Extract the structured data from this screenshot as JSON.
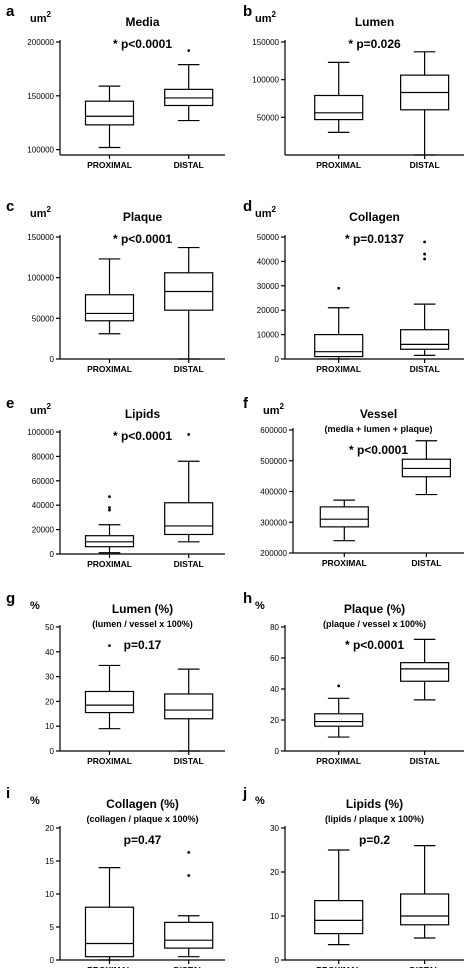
{
  "chart_data": [
    {
      "id": "a",
      "letter": "a",
      "type": "box",
      "title": "Media",
      "subtitle": "",
      "pvalue": "* p<0.0001",
      "unit": "um",
      "unit_sup": "2",
      "ylim": [
        95000,
        200000
      ],
      "yticks": [
        100000,
        150000,
        200000
      ],
      "categories": [
        "PROXIMAL",
        "DISTAL"
      ],
      "boxes": [
        {
          "min": 102000,
          "q1": 123000,
          "median": 131000,
          "q3": 145000,
          "max": 159000,
          "outliers": []
        },
        {
          "min": 127000,
          "q1": 141000,
          "median": 148000,
          "q3": 156000,
          "max": 179000,
          "outliers": [
            192000
          ]
        }
      ]
    },
    {
      "id": "b",
      "letter": "b",
      "type": "box",
      "title": "Lumen",
      "subtitle": "",
      "pvalue": "* p=0.026",
      "unit": "um",
      "unit_sup": "2",
      "ylim": [
        0,
        150000
      ],
      "yticks": [
        50000,
        100000,
        150000
      ],
      "categories": [
        "PROXIMAL",
        "DISTAL"
      ],
      "boxes": [
        {
          "min": 30000,
          "q1": 47000,
          "median": 56000,
          "q3": 79000,
          "max": 123000,
          "outliers": []
        },
        {
          "min": 0,
          "q1": 60000,
          "median": 83000,
          "q3": 106000,
          "max": 137000,
          "outliers": []
        }
      ]
    },
    {
      "id": "c",
      "letter": "c",
      "type": "box",
      "title": "Plaque",
      "subtitle": "",
      "pvalue": "* p<0.0001",
      "unit": "um",
      "unit_sup": "2",
      "ylim": [
        0,
        150000
      ],
      "yticks": [
        0,
        50000,
        100000,
        150000
      ],
      "categories": [
        "PROXIMAL",
        "DISTAL"
      ],
      "boxes": [
        {
          "min": 31000,
          "q1": 47000,
          "median": 56000,
          "q3": 79000,
          "max": 123000,
          "outliers": []
        },
        {
          "min": 0,
          "q1": 60000,
          "median": 83000,
          "q3": 106000,
          "max": 137000,
          "outliers": []
        }
      ]
    },
    {
      "id": "d",
      "letter": "d",
      "type": "box",
      "title": "Collagen",
      "subtitle": "",
      "pvalue": "* p=0.0137",
      "unit": "um",
      "unit_sup": "2",
      "ylim": [
        0,
        50000
      ],
      "yticks": [
        0,
        10000,
        20000,
        30000,
        40000,
        50000
      ],
      "categories": [
        "PROXIMAL",
        "DISTAL"
      ],
      "boxes": [
        {
          "min": 0,
          "q1": 1000,
          "median": 3000,
          "q3": 10000,
          "max": 21000,
          "outliers": [
            29000
          ]
        },
        {
          "min": 1500,
          "q1": 4000,
          "median": 6000,
          "q3": 12000,
          "max": 22500,
          "outliers": [
            41000,
            43000,
            48000
          ]
        }
      ]
    },
    {
      "id": "e",
      "letter": "e",
      "type": "box",
      "title": "Lipids",
      "subtitle": "",
      "pvalue": "* p<0.0001",
      "unit": "um",
      "unit_sup": "2",
      "ylim": [
        0,
        100000
      ],
      "yticks": [
        0,
        20000,
        40000,
        60000,
        80000,
        100000
      ],
      "categories": [
        "PROXIMAL",
        "DISTAL"
      ],
      "boxes": [
        {
          "min": 1000,
          "q1": 6000,
          "median": 10000,
          "q3": 15000,
          "max": 24000,
          "outliers": [
            36000,
            38000,
            47000
          ]
        },
        {
          "min": 10000,
          "q1": 16000,
          "median": 23000,
          "q3": 42000,
          "max": 76000,
          "outliers": [
            98000
          ]
        }
      ]
    },
    {
      "id": "f",
      "letter": "f",
      "type": "box",
      "title": "Vessel",
      "subtitle": "(media + lumen + plaque)",
      "pvalue": "* p<0.0001",
      "unit": "um",
      "unit_sup": "2",
      "ylim": [
        200000,
        600000
      ],
      "yticks": [
        200000,
        300000,
        400000,
        500000,
        600000
      ],
      "categories": [
        "PROXIMAL",
        "DISTAL"
      ],
      "boxes": [
        {
          "min": 240000,
          "q1": 285000,
          "median": 310000,
          "q3": 350000,
          "max": 372000,
          "outliers": []
        },
        {
          "min": 390000,
          "q1": 448000,
          "median": 475000,
          "q3": 505000,
          "max": 565000,
          "outliers": []
        }
      ]
    },
    {
      "id": "g",
      "letter": "g",
      "type": "box",
      "title": "Lumen (%)",
      "subtitle": "(lumen / vessel x 100%)",
      "pvalue": "p=0.17",
      "unit": "%",
      "unit_sup": "",
      "ylim": [
        0,
        50
      ],
      "yticks": [
        0,
        10,
        20,
        30,
        40,
        50
      ],
      "categories": [
        "PROXIMAL",
        "DISTAL"
      ],
      "boxes": [
        {
          "min": 9,
          "q1": 15.5,
          "median": 18.5,
          "q3": 24,
          "max": 34.5,
          "outliers": [
            42.5
          ]
        },
        {
          "min": 0,
          "q1": 13,
          "median": 16.5,
          "q3": 23,
          "max": 33,
          "outliers": []
        }
      ]
    },
    {
      "id": "h",
      "letter": "h",
      "type": "box",
      "title": "Plaque (%)",
      "subtitle": "(plaque / vessel x 100%)",
      "pvalue": "* p<0.0001",
      "unit": "%",
      "unit_sup": "",
      "ylim": [
        0,
        80
      ],
      "yticks": [
        0,
        20,
        40,
        60,
        80
      ],
      "categories": [
        "PROXIMAL",
        "DISTAL"
      ],
      "boxes": [
        {
          "min": 9,
          "q1": 16,
          "median": 19,
          "q3": 24,
          "max": 34,
          "outliers": [
            42
          ]
        },
        {
          "min": 33,
          "q1": 45,
          "median": 53,
          "q3": 57,
          "max": 72,
          "outliers": []
        }
      ]
    },
    {
      "id": "i",
      "letter": "i",
      "type": "box",
      "title": "Collagen (%)",
      "subtitle": "(collagen / plaque x 100%)",
      "pvalue": "p=0.47",
      "unit": "%",
      "unit_sup": "",
      "ylim": [
        0,
        20
      ],
      "yticks": [
        0,
        5,
        10,
        15,
        20
      ],
      "categories": [
        "PROXIMAL",
        "DISTAL"
      ],
      "boxes": [
        {
          "min": 0,
          "q1": 0.5,
          "median": 2.5,
          "q3": 8,
          "max": 14,
          "outliers": []
        },
        {
          "min": 0.5,
          "q1": 1.8,
          "median": 3,
          "q3": 5.7,
          "max": 6.7,
          "outliers": [
            12.8,
            16.3
          ]
        }
      ]
    },
    {
      "id": "j",
      "letter": "j",
      "type": "box",
      "title": "Lipids (%)",
      "subtitle": "(lipids / plaque x 100%)",
      "pvalue": "p=0.2",
      "unit": "%",
      "unit_sup": "",
      "ylim": [
        0,
        30
      ],
      "yticks": [
        0,
        10,
        20,
        30
      ],
      "categories": [
        "PROXIMAL",
        "DISTAL"
      ],
      "boxes": [
        {
          "min": 3.5,
          "q1": 6,
          "median": 9,
          "q3": 13.5,
          "max": 25,
          "outliers": []
        },
        {
          "min": 5,
          "q1": 8,
          "median": 10,
          "q3": 15,
          "max": 26,
          "outliers": []
        }
      ]
    }
  ]
}
